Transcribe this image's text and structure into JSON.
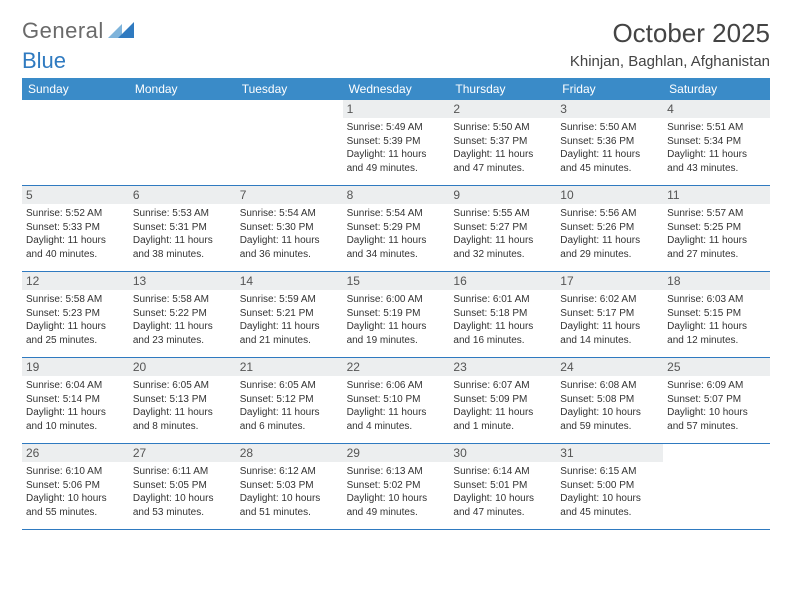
{
  "logo": {
    "word1": "General",
    "word2": "Blue"
  },
  "title": "October 2025",
  "location": "Khinjan, Baghlan, Afghanistan",
  "colors": {
    "header_bg": "#3a8bc8",
    "header_text": "#ffffff",
    "rule": "#2f7ac0",
    "daynum_bg": "#eceeef",
    "text": "#333333",
    "tri_light": "#7fb4db",
    "tri_dark": "#2f7ac0"
  },
  "dow": [
    "Sunday",
    "Monday",
    "Tuesday",
    "Wednesday",
    "Thursday",
    "Friday",
    "Saturday"
  ],
  "weeks": [
    [
      null,
      null,
      null,
      {
        "n": "1",
        "sr": "Sunrise: 5:49 AM",
        "ss": "Sunset: 5:39 PM",
        "dl": "Daylight: 11 hours and 49 minutes."
      },
      {
        "n": "2",
        "sr": "Sunrise: 5:50 AM",
        "ss": "Sunset: 5:37 PM",
        "dl": "Daylight: 11 hours and 47 minutes."
      },
      {
        "n": "3",
        "sr": "Sunrise: 5:50 AM",
        "ss": "Sunset: 5:36 PM",
        "dl": "Daylight: 11 hours and 45 minutes."
      },
      {
        "n": "4",
        "sr": "Sunrise: 5:51 AM",
        "ss": "Sunset: 5:34 PM",
        "dl": "Daylight: 11 hours and 43 minutes."
      }
    ],
    [
      {
        "n": "5",
        "sr": "Sunrise: 5:52 AM",
        "ss": "Sunset: 5:33 PM",
        "dl": "Daylight: 11 hours and 40 minutes."
      },
      {
        "n": "6",
        "sr": "Sunrise: 5:53 AM",
        "ss": "Sunset: 5:31 PM",
        "dl": "Daylight: 11 hours and 38 minutes."
      },
      {
        "n": "7",
        "sr": "Sunrise: 5:54 AM",
        "ss": "Sunset: 5:30 PM",
        "dl": "Daylight: 11 hours and 36 minutes."
      },
      {
        "n": "8",
        "sr": "Sunrise: 5:54 AM",
        "ss": "Sunset: 5:29 PM",
        "dl": "Daylight: 11 hours and 34 minutes."
      },
      {
        "n": "9",
        "sr": "Sunrise: 5:55 AM",
        "ss": "Sunset: 5:27 PM",
        "dl": "Daylight: 11 hours and 32 minutes."
      },
      {
        "n": "10",
        "sr": "Sunrise: 5:56 AM",
        "ss": "Sunset: 5:26 PM",
        "dl": "Daylight: 11 hours and 29 minutes."
      },
      {
        "n": "11",
        "sr": "Sunrise: 5:57 AM",
        "ss": "Sunset: 5:25 PM",
        "dl": "Daylight: 11 hours and 27 minutes."
      }
    ],
    [
      {
        "n": "12",
        "sr": "Sunrise: 5:58 AM",
        "ss": "Sunset: 5:23 PM",
        "dl": "Daylight: 11 hours and 25 minutes."
      },
      {
        "n": "13",
        "sr": "Sunrise: 5:58 AM",
        "ss": "Sunset: 5:22 PM",
        "dl": "Daylight: 11 hours and 23 minutes."
      },
      {
        "n": "14",
        "sr": "Sunrise: 5:59 AM",
        "ss": "Sunset: 5:21 PM",
        "dl": "Daylight: 11 hours and 21 minutes."
      },
      {
        "n": "15",
        "sr": "Sunrise: 6:00 AM",
        "ss": "Sunset: 5:19 PM",
        "dl": "Daylight: 11 hours and 19 minutes."
      },
      {
        "n": "16",
        "sr": "Sunrise: 6:01 AM",
        "ss": "Sunset: 5:18 PM",
        "dl": "Daylight: 11 hours and 16 minutes."
      },
      {
        "n": "17",
        "sr": "Sunrise: 6:02 AM",
        "ss": "Sunset: 5:17 PM",
        "dl": "Daylight: 11 hours and 14 minutes."
      },
      {
        "n": "18",
        "sr": "Sunrise: 6:03 AM",
        "ss": "Sunset: 5:15 PM",
        "dl": "Daylight: 11 hours and 12 minutes."
      }
    ],
    [
      {
        "n": "19",
        "sr": "Sunrise: 6:04 AM",
        "ss": "Sunset: 5:14 PM",
        "dl": "Daylight: 11 hours and 10 minutes."
      },
      {
        "n": "20",
        "sr": "Sunrise: 6:05 AM",
        "ss": "Sunset: 5:13 PM",
        "dl": "Daylight: 11 hours and 8 minutes."
      },
      {
        "n": "21",
        "sr": "Sunrise: 6:05 AM",
        "ss": "Sunset: 5:12 PM",
        "dl": "Daylight: 11 hours and 6 minutes."
      },
      {
        "n": "22",
        "sr": "Sunrise: 6:06 AM",
        "ss": "Sunset: 5:10 PM",
        "dl": "Daylight: 11 hours and 4 minutes."
      },
      {
        "n": "23",
        "sr": "Sunrise: 6:07 AM",
        "ss": "Sunset: 5:09 PM",
        "dl": "Daylight: 11 hours and 1 minute."
      },
      {
        "n": "24",
        "sr": "Sunrise: 6:08 AM",
        "ss": "Sunset: 5:08 PM",
        "dl": "Daylight: 10 hours and 59 minutes."
      },
      {
        "n": "25",
        "sr": "Sunrise: 6:09 AM",
        "ss": "Sunset: 5:07 PM",
        "dl": "Daylight: 10 hours and 57 minutes."
      }
    ],
    [
      {
        "n": "26",
        "sr": "Sunrise: 6:10 AM",
        "ss": "Sunset: 5:06 PM",
        "dl": "Daylight: 10 hours and 55 minutes."
      },
      {
        "n": "27",
        "sr": "Sunrise: 6:11 AM",
        "ss": "Sunset: 5:05 PM",
        "dl": "Daylight: 10 hours and 53 minutes."
      },
      {
        "n": "28",
        "sr": "Sunrise: 6:12 AM",
        "ss": "Sunset: 5:03 PM",
        "dl": "Daylight: 10 hours and 51 minutes."
      },
      {
        "n": "29",
        "sr": "Sunrise: 6:13 AM",
        "ss": "Sunset: 5:02 PM",
        "dl": "Daylight: 10 hours and 49 minutes."
      },
      {
        "n": "30",
        "sr": "Sunrise: 6:14 AM",
        "ss": "Sunset: 5:01 PM",
        "dl": "Daylight: 10 hours and 47 minutes."
      },
      {
        "n": "31",
        "sr": "Sunrise: 6:15 AM",
        "ss": "Sunset: 5:00 PM",
        "dl": "Daylight: 10 hours and 45 minutes."
      },
      null
    ]
  ]
}
